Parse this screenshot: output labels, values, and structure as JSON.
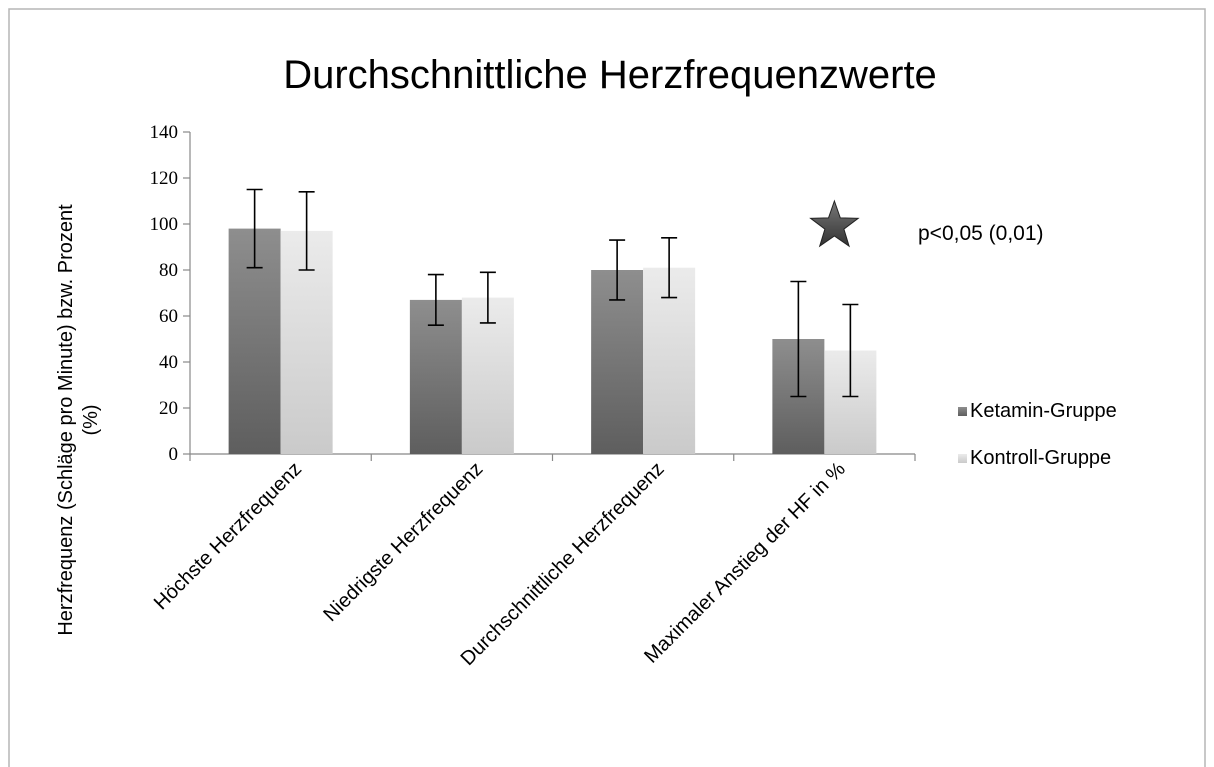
{
  "chart_data": {
    "type": "bar",
    "title": "Durchschnittliche Herzfrequenzwerte",
    "xlabel": "",
    "ylabel_lines": [
      "Herzfrequenz (Schläge pro Minute) bzw. Prozent",
      "(%)"
    ],
    "ylim": [
      0,
      140
    ],
    "yticks": [
      0,
      20,
      40,
      60,
      80,
      100,
      120,
      140
    ],
    "grid": false,
    "legend_position": "right",
    "categories": [
      "Höchste Herzfrequenz",
      "Niedrigste Herzfrequenz",
      "Durchschnittliche Herzfrequenz",
      "Maximaler Anstieg der HF in %"
    ],
    "series": [
      {
        "name": "Ketamin-Gruppe",
        "values": [
          98,
          67,
          80,
          50
        ],
        "error_low": [
          81,
          56,
          67,
          25
        ],
        "error_high": [
          115,
          78,
          93,
          75
        ]
      },
      {
        "name": "Kontroll-Gruppe",
        "values": [
          97,
          68,
          81,
          45
        ],
        "error_low": [
          80,
          57,
          68,
          25
        ],
        "error_high": [
          114,
          79,
          94,
          65
        ]
      }
    ],
    "annotation": {
      "text": "p<0,05 (0,01)",
      "marker": "star-icon",
      "category_index": 3
    }
  },
  "colors": {
    "series_dark_top": "#8a8a8a",
    "series_dark_bottom": "#5a5a5a",
    "series_light_top": "#e8e8e8",
    "series_light_bottom": "#c8c8c8",
    "star": "#555555"
  }
}
